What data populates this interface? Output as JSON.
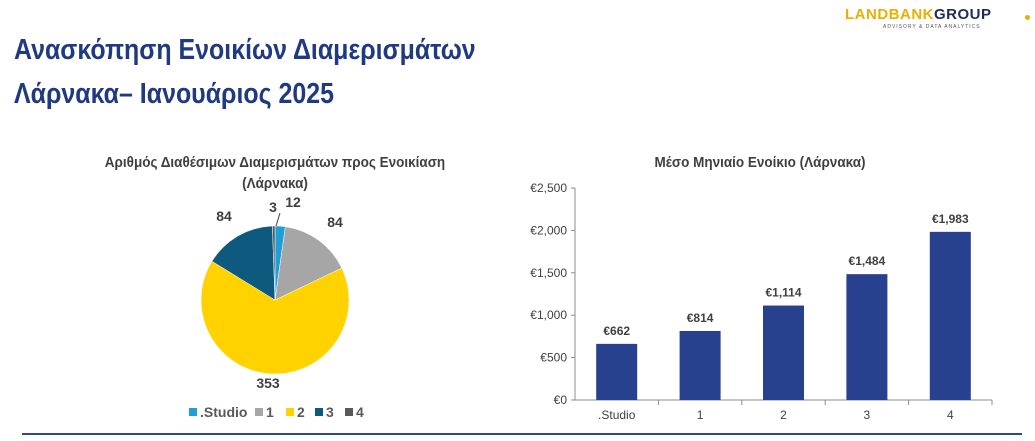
{
  "header": {
    "title_line1": "Ανασκόπηση Ενοικίων Διαμερισμάτων",
    "title_line2": "Λάρνακα– Ιανουάριος 2025"
  },
  "logo": {
    "land": "LANDBANK",
    "group": "GROUP",
    "tagline": "ADVISORY & DATA ANALYTICS"
  },
  "chart_data": [
    {
      "type": "pie",
      "title": "Αριθμός Διαθέσιμων Διαμερισμάτων προς Ενοικίαση (Λάρνακα)",
      "title_lines": [
        "Αριθμός Διαθέσιμων Διαμερισμάτων προς Ενοικίαση",
        "(Λάρνακα)"
      ],
      "categories": [
        ".Studio",
        "1",
        "2",
        "3",
        "4"
      ],
      "values": [
        12,
        84,
        353,
        84,
        3
      ],
      "data_labels": [
        "12",
        "84",
        "353",
        "84",
        "3"
      ],
      "colors": [
        "#1F9ED8",
        "#A6A6A6",
        "#FFD200",
        "#0E5A7E",
        "#595959"
      ],
      "legend": "bottom"
    },
    {
      "type": "bar",
      "title": "Μέσο Μηνιαίο Ενοίκιο (Λάρνακα)",
      "categories": [
        ".Studio",
        "1",
        "2",
        "3",
        "4"
      ],
      "values": [
        662,
        814,
        1114,
        1484,
        1983
      ],
      "data_labels": [
        "€662",
        "€814",
        "€1,114",
        "€1,484",
        "€1,983"
      ],
      "ylim": [
        0,
        2500
      ],
      "yticks": [
        0,
        500,
        1000,
        1500,
        2000,
        2500
      ],
      "ytick_labels": [
        "€0",
        "€500",
        "€1,000",
        "€1,500",
        "€2,000",
        "€2,500"
      ],
      "color": "#27418E",
      "grid": false
    }
  ]
}
